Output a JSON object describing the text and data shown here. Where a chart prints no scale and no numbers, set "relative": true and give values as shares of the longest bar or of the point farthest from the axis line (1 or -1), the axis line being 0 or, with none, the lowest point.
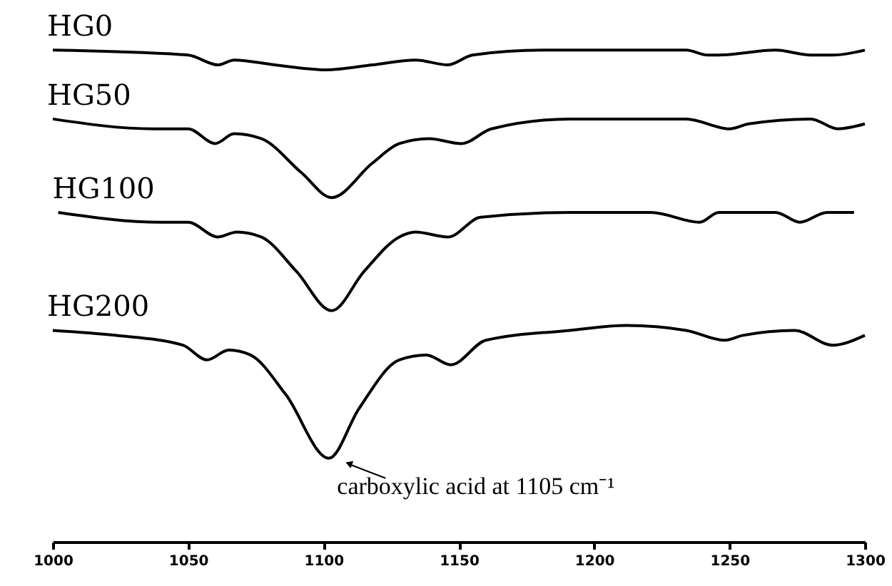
{
  "chart_data": {
    "type": "line",
    "relative": true,
    "legend": false,
    "grid": false,
    "marker": "none",
    "line_style": "solid",
    "xlim": [
      1000,
      1300
    ],
    "xticks": [
      1000,
      1050,
      1100,
      1150,
      1200,
      1250,
      1300
    ],
    "annotations": [
      {
        "text": "carboxylic acid at 1105 cm⁻¹",
        "x": 1105,
        "y": 0.17
      }
    ],
    "series": [
      {
        "name": "HG0",
        "color": "#000000",
        "x": [
          1000,
          1050,
          1061,
          1067,
          1082,
          1101,
          1118,
          1134,
          1146,
          1155,
          1181,
          1212,
          1234,
          1242,
          1246,
          1267,
          1280,
          1288,
          1300
        ],
        "values": [
          1.0,
          0.99,
          0.97,
          0.98,
          0.97,
          0.96,
          0.97,
          0.98,
          0.97,
          0.99,
          1.0,
          1.0,
          1.0,
          0.99,
          0.99,
          1.0,
          0.99,
          0.99,
          1.0
        ]
      },
      {
        "name": "HG50",
        "color": "#000000",
        "x": [
          1000,
          1037,
          1050,
          1060,
          1067,
          1077,
          1092,
          1103,
          1118,
          1128,
          1139,
          1151,
          1162,
          1191,
          1212,
          1234,
          1250,
          1257,
          1280,
          1290,
          1300
        ],
        "values": [
          0.86,
          0.84,
          0.84,
          0.81,
          0.83,
          0.82,
          0.75,
          0.7,
          0.77,
          0.81,
          0.82,
          0.81,
          0.84,
          0.86,
          0.86,
          0.86,
          0.84,
          0.85,
          0.86,
          0.84,
          0.85
        ]
      },
      {
        "name": "HG100",
        "color": "#000000",
        "x": [
          1002,
          1040,
          1050,
          1061,
          1068,
          1077,
          1090,
          1103,
          1115,
          1128,
          1134,
          1146,
          1158,
          1191,
          1221,
          1239,
          1246,
          1267,
          1276,
          1286,
          1296
        ],
        "values": [
          0.67,
          0.65,
          0.65,
          0.62,
          0.63,
          0.62,
          0.55,
          0.47,
          0.55,
          0.62,
          0.63,
          0.62,
          0.66,
          0.67,
          0.67,
          0.65,
          0.67,
          0.67,
          0.65,
          0.67,
          0.67
        ]
      },
      {
        "name": "HG200",
        "color": "#000000",
        "x": [
          1000,
          1023,
          1048,
          1057,
          1065,
          1073,
          1086,
          1102,
          1113,
          1128,
          1138,
          1147,
          1160,
          1191,
          1212,
          1234,
          1248,
          1255,
          1274,
          1288,
          1300
        ],
        "values": [
          0.43,
          0.42,
          0.4,
          0.37,
          0.39,
          0.38,
          0.3,
          0.17,
          0.27,
          0.37,
          0.38,
          0.36,
          0.41,
          0.43,
          0.44,
          0.43,
          0.41,
          0.42,
          0.43,
          0.4,
          0.42
        ]
      }
    ]
  }
}
